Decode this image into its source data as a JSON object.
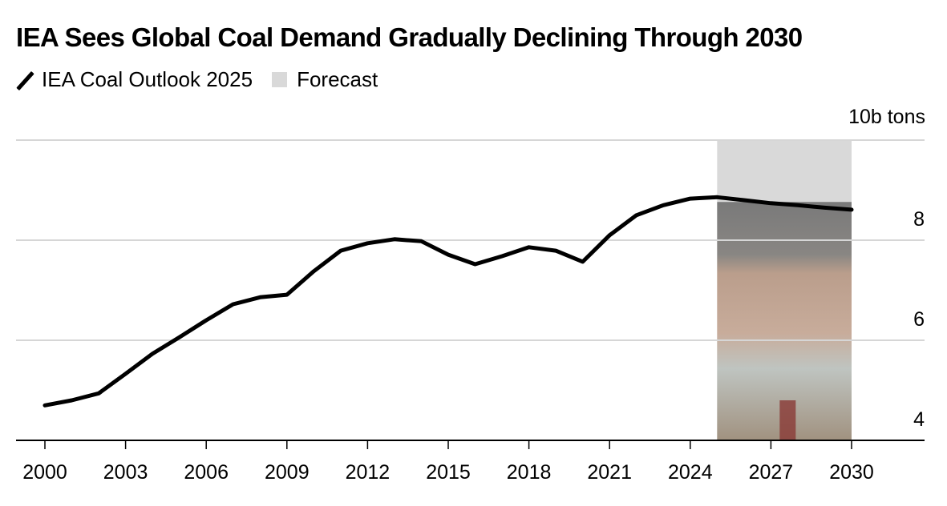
{
  "header": {
    "title": "IEA Sees Global Coal Demand Gradually Declining Through 2030"
  },
  "legend": [
    {
      "label": "IEA Coal Outlook 2025",
      "kind": "line",
      "color": "#000000"
    },
    {
      "label": "Forecast",
      "kind": "swatch",
      "color": "#d9d9d9"
    }
  ],
  "chart_data": {
    "type": "line",
    "title": "IEA Sees Global Coal Demand Gradually Declining Through 2030",
    "xlabel": "",
    "ylabel": "10b tons",
    "unit_label": "10b tons",
    "ylim": [
      4,
      10
    ],
    "xlim": [
      2000,
      2030
    ],
    "y_ticks": [
      4,
      6,
      8
    ],
    "y_tick_labels": [
      "4",
      "6",
      "8"
    ],
    "y_grid": [
      6,
      8,
      10
    ],
    "x_ticks": [
      2000,
      2003,
      2006,
      2009,
      2012,
      2015,
      2018,
      2021,
      2024,
      2027,
      2030
    ],
    "x_tick_labels": [
      "2000",
      "2003",
      "2006",
      "2009",
      "2012",
      "2015",
      "2018",
      "2021",
      "2024",
      "2027",
      "2030"
    ],
    "grid": true,
    "legend_position": "top-left",
    "y_axis_side": "right",
    "forecast_region": {
      "label": "Forecast",
      "from": 2025,
      "to": 2030,
      "color": "#d9d9d9"
    },
    "series": [
      {
        "name": "IEA Coal Outlook 2025",
        "color": "#000000",
        "x": [
          2000,
          2001,
          2002,
          2003,
          2004,
          2005,
          2006,
          2007,
          2008,
          2009,
          2010,
          2011,
          2012,
          2013,
          2014,
          2015,
          2016,
          2017,
          2018,
          2019,
          2020,
          2021,
          2022,
          2023,
          2024,
          2025,
          2026,
          2027,
          2028,
          2029,
          2030
        ],
        "values": [
          4.7,
          4.8,
          4.94,
          5.33,
          5.73,
          6.06,
          6.4,
          6.72,
          6.86,
          6.91,
          7.38,
          7.79,
          7.94,
          8.02,
          7.98,
          7.71,
          7.52,
          7.68,
          7.86,
          7.79,
          7.57,
          8.1,
          8.5,
          8.7,
          8.83,
          8.86,
          8.8,
          8.74,
          8.7,
          8.65,
          8.61
        ]
      }
    ]
  }
}
